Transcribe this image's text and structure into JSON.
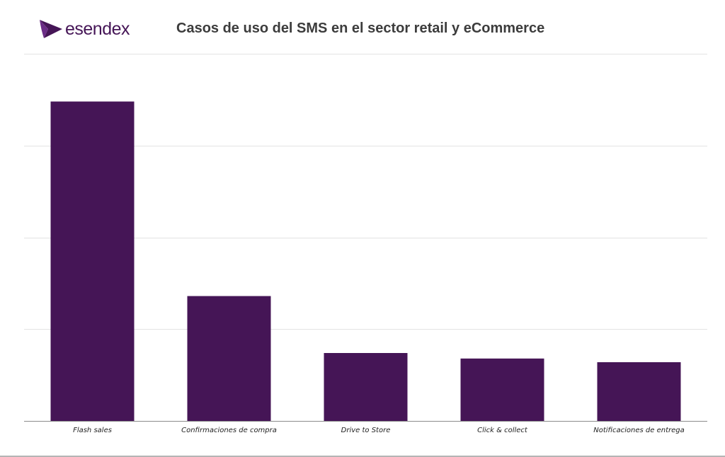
{
  "brand": {
    "logo_text": "esendex",
    "color": "#451556"
  },
  "chart_data": {
    "type": "bar",
    "title": "Casos de uso del SMS en el sector retail y eCommerce",
    "categories": [
      "Flash sales",
      "Confirmaciones de compra",
      "Drive to Store",
      "Click & collect",
      "Notificaciones de entrega"
    ],
    "values": [
      87,
      34,
      18.5,
      17,
      16
    ],
    "ylim": [
      0,
      100
    ],
    "xlabel": "",
    "ylabel": "",
    "grid": true,
    "bar_color": "#451556",
    "grid_color": "#e3e3e3",
    "axis_color": "#8c8c8c"
  }
}
